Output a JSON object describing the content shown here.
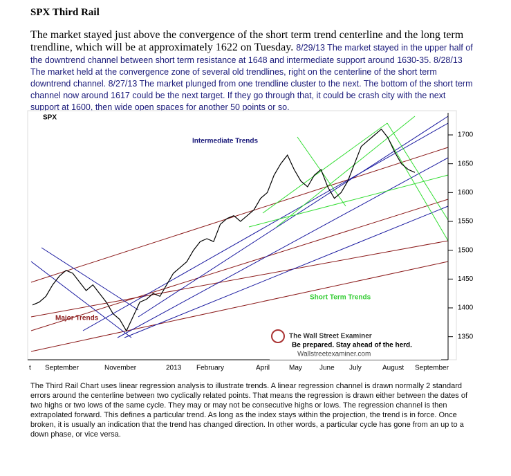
{
  "header": {
    "title": "SPX Third Rail"
  },
  "intro": {
    "lead": "The market stayed just above the convergence of the short term trend centerline and the long term trendline, which will be at approximately 1622 on Tuesday.",
    "updates": "8/29/13 The market stayed in the upper half of the downtrend channel between short term resistance at 1648 and intermediate support around 1630-35. 8/28/13 The market held at the convergence zone of several old trendlines, right on the centerline of the short term downtrend channel. 8/27/13 The market plunged from one trendline cluster to the next. The bottom of the short term channel now around 1617 could be the next target. If they go through that, it could be crash city with the next support at 1600, then wide open spaces for another 50 points or so."
  },
  "chart_data": {
    "type": "line",
    "title": "SPX",
    "color": "#000000",
    "values": [
      1405,
      1410,
      1420,
      1440,
      1455,
      1465,
      1460,
      1445,
      1430,
      1440,
      1425,
      1410,
      1390,
      1380,
      1360,
      1385,
      1410,
      1415,
      1425,
      1420,
      1440,
      1460,
      1470,
      1480,
      1500,
      1515,
      1520,
      1515,
      1545,
      1555,
      1560,
      1550,
      1560,
      1570,
      1590,
      1600,
      1630,
      1650,
      1665,
      1640,
      1620,
      1610,
      1630,
      1640,
      1610,
      1590,
      1600,
      1620,
      1650,
      1680,
      1690,
      1700,
      1710,
      1695,
      1670,
      1650,
      1640,
      1635
    ],
    "ylim": [
      1310,
      1736
    ],
    "yticks": [
      1350,
      1400,
      1450,
      1500,
      1550,
      1600,
      1650,
      1700
    ],
    "x_tick_labels": [
      "t",
      "September",
      "November",
      "2013",
      "February",
      "April",
      "May",
      "June",
      "July",
      "August",
      "September"
    ],
    "annotations": {
      "intermediate": "Intermediate Trends",
      "short_term": "Short Term Trends",
      "major": "Major Trends"
    },
    "watermark": {
      "name": "The Wall Street Examiner",
      "slogan": "Be prepared. Stay ahead of the herd.",
      "url": "Wallstreetexaminer.com"
    }
  },
  "footer": {
    "text": "The Third Rail Chart uses linear regression analysis to illustrate trends. A linear regression channel is drawn normally 2 standard errors around the centerline between two cyclically related points. That means the regression is drawn either between the dates of two highs or two lows of the same cycle. They may or may not be consecutive highs or lows. The regression channel is then extrapolated forward. This defines a particular trend. As long as the index stays within the projection, the trend is in force. Once broken, it is usually an indication that the trend has changed direction. In other words, a particular cycle has gone from an up to a down phase, or vice versa."
  }
}
